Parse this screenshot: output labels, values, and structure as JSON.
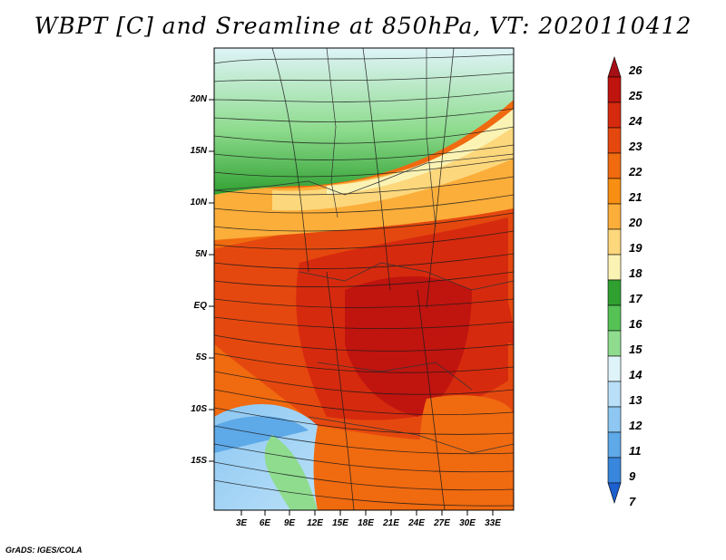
{
  "title": "WBPT [C] and Sreamline at 850hPa, VT: 2020110412",
  "credit": "GrADS: IGES/COLA",
  "map": {
    "lat_labels": [
      "20N",
      "15N",
      "10N",
      "5N",
      "EQ",
      "5S",
      "10S",
      "15S"
    ],
    "lon_labels": [
      "3E",
      "6E",
      "9E",
      "12E",
      "15E",
      "18E",
      "21E",
      "24E",
      "27E",
      "30E",
      "33E"
    ]
  },
  "colorbar": {
    "labels": [
      "26",
      "25",
      "24",
      "23",
      "22",
      "21",
      "20",
      "19",
      "18",
      "17",
      "16",
      "15",
      "14",
      "13",
      "12",
      "11",
      "9",
      "7"
    ],
    "colors": [
      "#a50f15",
      "#c0140f",
      "#d62a0e",
      "#e5480f",
      "#f06a10",
      "#f88f12",
      "#fbae3a",
      "#fcd77c",
      "#fbf3b4",
      "#30a030",
      "#56c256",
      "#8fdc8f",
      "#dff4f8",
      "#b9e0f8",
      "#8dc7f2",
      "#5ea9e8",
      "#3986dd",
      "#1c5fcf"
    ]
  }
}
